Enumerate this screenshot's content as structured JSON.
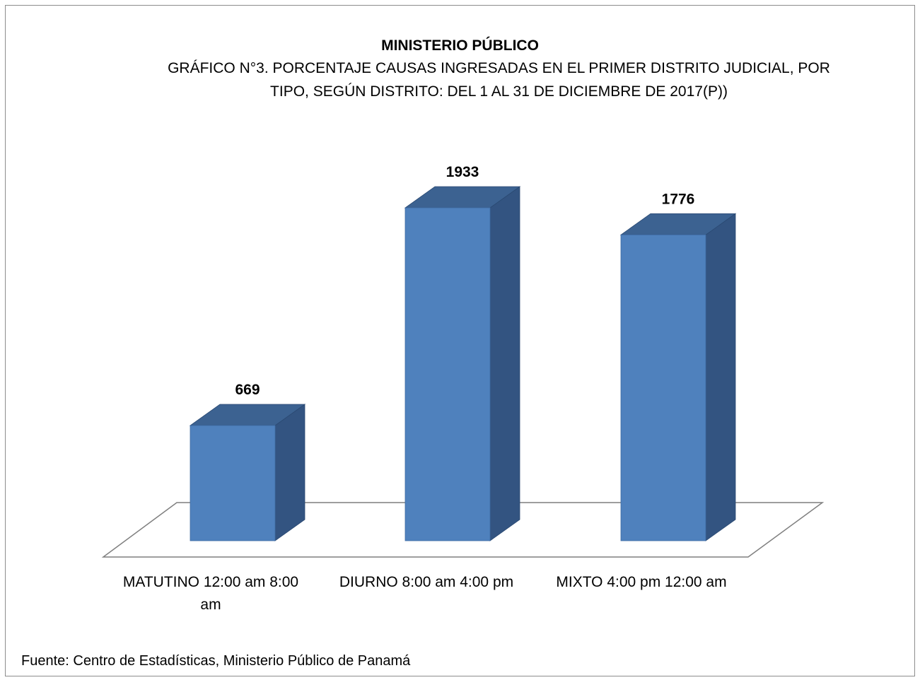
{
  "chart_data": {
    "type": "bar",
    "style": "3d-column",
    "title": "MINISTERIO PÚBLICO",
    "subtitle": "GRÁFICO  N°3. PORCENTAJE CAUSAS INGRESADAS EN EL PRIMER DISTRITO JUDICIAL, POR TIPO, SEGÚN DISTRITO: DEL 1 AL 31 DE DICIEMBRE DE 2017(P))",
    "categories": [
      "MATUTINO 12:00 am 8:00 am",
      "DIURNO 8:00 am 4:00 pm",
      "MIXTO 4:00 pm 12:00 am"
    ],
    "values": [
      669,
      1933,
      1776
    ],
    "data_labels": [
      "669",
      "1933",
      "1776"
    ],
    "ylim": [
      0,
      2000
    ],
    "grid": false,
    "legend": "none",
    "colors": {
      "front": "#4f81bd",
      "top": "#3c6291",
      "side": "#335481",
      "floor": "#7f7f7f"
    }
  },
  "source": "Fuente: Centro de Estadísticas, Ministerio Público de Panamá"
}
